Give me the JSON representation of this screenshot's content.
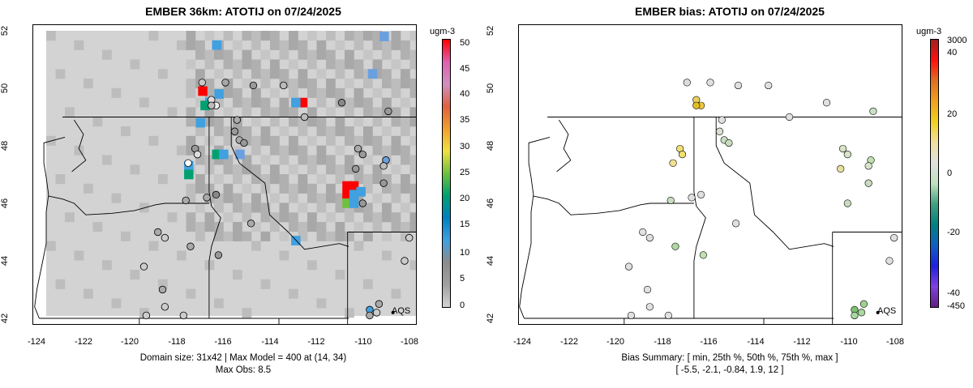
{
  "left_panel": {
    "title": "EMBER 36km: ATOTIJ on 07/24/2025",
    "colorbar_unit": "ugm-3",
    "colorbar_labels": [
      "50",
      "45",
      "40",
      "35",
      "30",
      "25",
      "20",
      "15",
      "10",
      "5",
      "0"
    ],
    "caption_line1": "Domain size: 31x42 | Max Model = 400 at (14, 34)",
    "caption_line2": "Max Obs: 8.5",
    "legend_label": "AQS"
  },
  "right_panel": {
    "title": "EMBER bias: ATOTIJ on 07/24/2025",
    "colorbar_unit": "ugm-3",
    "colorbar_labels": [
      "3000",
      "40",
      "20",
      "0",
      "-20",
      "-40",
      "-450"
    ],
    "caption_line1": "Bias Summary: [ min, 25th %, 50th %, 75th %, max ]",
    "caption_line2": "[ -5.5,   -2.1,   -0.84,   1.9,   12 ]",
    "legend_label": "AQS"
  },
  "axes": {
    "x_ticks": [
      "-124",
      "-122",
      "-120",
      "-118",
      "-116",
      "-114",
      "-112",
      "-110",
      "-108"
    ],
    "y_ticks": [
      "52",
      "50",
      "48",
      "46",
      "44",
      "42"
    ]
  },
  "colors": {
    "concentration_scale": [
      "#d3d3d3",
      "#a0a0a0",
      "#8c8c8c",
      "#40a0e0",
      "#0080c0",
      "#00a070",
      "#70c040",
      "#f0e040",
      "#f0a030",
      "#e06040",
      "#d090c0",
      "#e060b0",
      "#ff0000"
    ],
    "bias_scale": [
      "#602080",
      "#8040e0",
      "#2020e0",
      "#1060c0",
      "#008080",
      "#40a080",
      "#c0e0c0",
      "#e0e0e0",
      "#f0e0a0",
      "#f0d020",
      "#f0a020",
      "#e07020",
      "#ff1010",
      "#a02020"
    ]
  }
}
